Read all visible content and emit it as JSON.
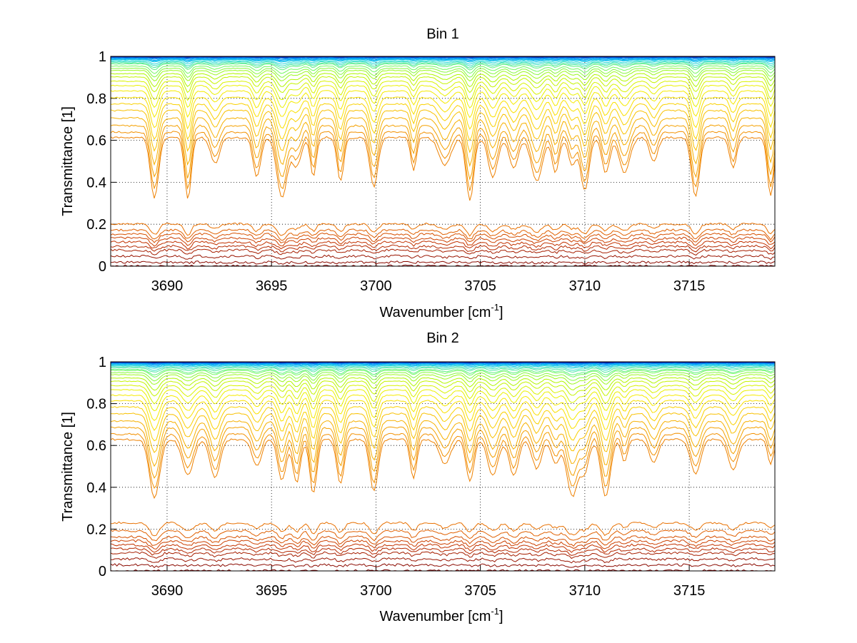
{
  "chart_data": [
    {
      "type": "line",
      "title": "Bin 1",
      "xlabel": "Wavenumber [cm",
      "xlabel_sup": "-1",
      "xlabel_end": "]",
      "ylabel": "Transmittance [1]",
      "xlim": [
        3687.3,
        3719.1
      ],
      "ylim": [
        0,
        1
      ],
      "xticks": [
        3690,
        3695,
        3700,
        3705,
        3710,
        3715
      ],
      "yticks": [
        0,
        0.2,
        0.4,
        0.6,
        0.8,
        1
      ],
      "grid": true,
      "legend": "none",
      "absorption_lines_cm-1": [
        3689.4,
        3691.0,
        3692.3,
        3694.3,
        3695.5,
        3696.2,
        3697.0,
        3698.3,
        3699.9,
        3701.8,
        3703.3,
        3704.5,
        3705.6,
        3706.6,
        3707.7,
        3708.6,
        3709.4,
        3710.0,
        3711.0,
        3711.9,
        3713.3,
        3715.3,
        3717.1,
        3718.9
      ],
      "series_count": 40,
      "series_min_transmittance": [
        0.0,
        0.02,
        0.05,
        0.08,
        0.1,
        0.12,
        0.14,
        0.16,
        0.18,
        0.21,
        0.25,
        0.3,
        0.36,
        0.43,
        0.5,
        0.56,
        0.62,
        0.68,
        0.73,
        0.77,
        0.81,
        0.84,
        0.87,
        0.89,
        0.91,
        0.93,
        0.94,
        0.95,
        0.96,
        0.97,
        0.975,
        0.98,
        0.985,
        0.99,
        0.992,
        0.994,
        0.996,
        0.997,
        0.998,
        0.999
      ],
      "series_colors": [
        "#800000",
        "#8b0a00",
        "#991400",
        "#a61e00",
        "#b42800",
        "#c23200",
        "#cc4000",
        "#d65000",
        "#e06000",
        "#e87000",
        "#ee8000",
        "#f29000",
        "#f4a000",
        "#f6b000",
        "#f8c000",
        "#f9d000",
        "#fae000",
        "#f5ea00",
        "#eaf000",
        "#d8f200",
        "#c4f400",
        "#b0f600",
        "#9cf820",
        "#88f840",
        "#74f860",
        "#60f080",
        "#4ce8a0",
        "#38e0c0",
        "#24d8d8",
        "#18c8e8",
        "#10b8f0",
        "#08a8f4",
        "#0098f8",
        "#0080f0",
        "#0068e0",
        "#0050d0",
        "#0038c0",
        "#0020b0",
        "#0010a0",
        "#000890"
      ],
      "grid_color": "#000000",
      "axis_color": "#000000"
    },
    {
      "type": "line",
      "title": "Bin 2",
      "xlabel": "Wavenumber [cm",
      "xlabel_sup": "-1",
      "xlabel_end": "]",
      "ylabel": "Transmittance [1]",
      "xlim": [
        3687.3,
        3719.1
      ],
      "ylim": [
        0,
        1
      ],
      "xticks": [
        3690,
        3695,
        3700,
        3705,
        3710,
        3715
      ],
      "yticks": [
        0,
        0.2,
        0.4,
        0.6,
        0.8,
        1
      ],
      "grid": true,
      "legend": "none",
      "absorption_lines_cm-1": [
        3689.4,
        3691.0,
        3692.3,
        3694.3,
        3695.5,
        3696.2,
        3697.0,
        3698.3,
        3699.9,
        3701.8,
        3703.3,
        3704.5,
        3705.6,
        3706.6,
        3707.7,
        3708.6,
        3709.4,
        3710.0,
        3711.0,
        3711.9,
        3713.3,
        3715.3,
        3717.1,
        3718.9
      ],
      "series_count": 40,
      "series_min_transmittance": [
        0.0,
        0.03,
        0.06,
        0.09,
        0.11,
        0.13,
        0.15,
        0.17,
        0.2,
        0.24,
        0.28,
        0.33,
        0.39,
        0.45,
        0.52,
        0.58,
        0.64,
        0.69,
        0.74,
        0.78,
        0.82,
        0.85,
        0.88,
        0.9,
        0.92,
        0.93,
        0.945,
        0.955,
        0.965,
        0.972,
        0.978,
        0.983,
        0.987,
        0.99,
        0.993,
        0.995,
        0.996,
        0.997,
        0.998,
        0.999
      ],
      "series_colors": [
        "#800000",
        "#8b0a00",
        "#991400",
        "#a61e00",
        "#b42800",
        "#c23200",
        "#cc4000",
        "#d65000",
        "#e06000",
        "#e87000",
        "#ee8000",
        "#f29000",
        "#f4a000",
        "#f6b000",
        "#f8c000",
        "#f9d000",
        "#fae000",
        "#f5ea00",
        "#eaf000",
        "#d8f200",
        "#c4f400",
        "#b0f600",
        "#9cf820",
        "#88f840",
        "#74f860",
        "#60f080",
        "#4ce8a0",
        "#38e0c0",
        "#24d8d8",
        "#18c8e8",
        "#10b8f0",
        "#08a8f4",
        "#0098f8",
        "#0080f0",
        "#0068e0",
        "#0050d0",
        "#0038c0",
        "#0020b0",
        "#0010a0",
        "#000890"
      ],
      "grid_color": "#000000",
      "axis_color": "#000000"
    }
  ]
}
